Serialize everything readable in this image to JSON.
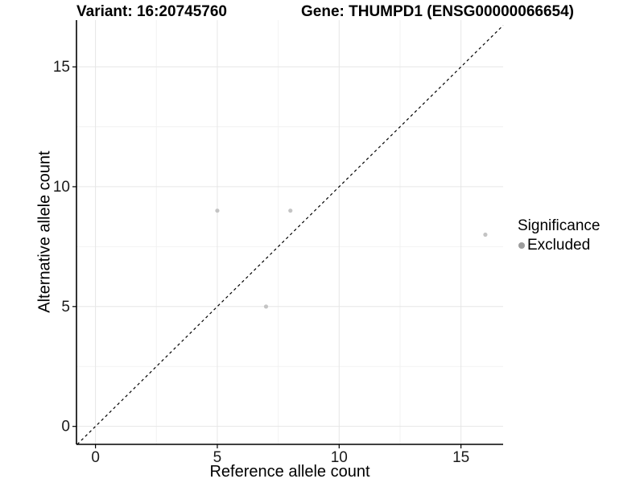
{
  "chart_data": {
    "type": "scatter",
    "title_left": "Variant: 16:20745760",
    "title_right": "Gene: THUMPD1 (ENSG00000066654)",
    "xlabel": "Reference allele count",
    "ylabel": "Alternative allele count",
    "xlim": [
      -0.78,
      16.73
    ],
    "ylim": [
      -0.75,
      16.95
    ],
    "x_ticks": [
      0,
      5,
      10,
      15
    ],
    "y_ticks": [
      0,
      5,
      10,
      15
    ],
    "x_minor_ticks": [
      2.5,
      7.5,
      12.5
    ],
    "y_minor_ticks": [
      2.5,
      7.5,
      12.5
    ],
    "grid": "major and minor gridlines on white panel",
    "identity_line": {
      "equation": "y = x",
      "style": "dashed",
      "color": "#000000"
    },
    "series": [
      {
        "name": "Excluded",
        "point_color": "#c4c4c4",
        "points": [
          {
            "x": 5,
            "y": 9
          },
          {
            "x": 8,
            "y": 9
          },
          {
            "x": 7,
            "y": 5
          },
          {
            "x": 16,
            "y": 8
          }
        ]
      }
    ],
    "legend": {
      "title": "Significance",
      "position": "right",
      "items": [
        {
          "label": "Excluded",
          "color": "#9c9c9c"
        }
      ]
    },
    "style": {
      "background": "#ffffff",
      "grid_major_color": "#e6e6e6",
      "grid_minor_color": "#f2f2f2",
      "axis_line_color": "#000000",
      "tick_color": "#000000",
      "tick_label_color": "#1a1a1a",
      "point_radius": 2.6,
      "legend_dot_radius": 4,
      "tick_label_font_size": 19
    }
  }
}
